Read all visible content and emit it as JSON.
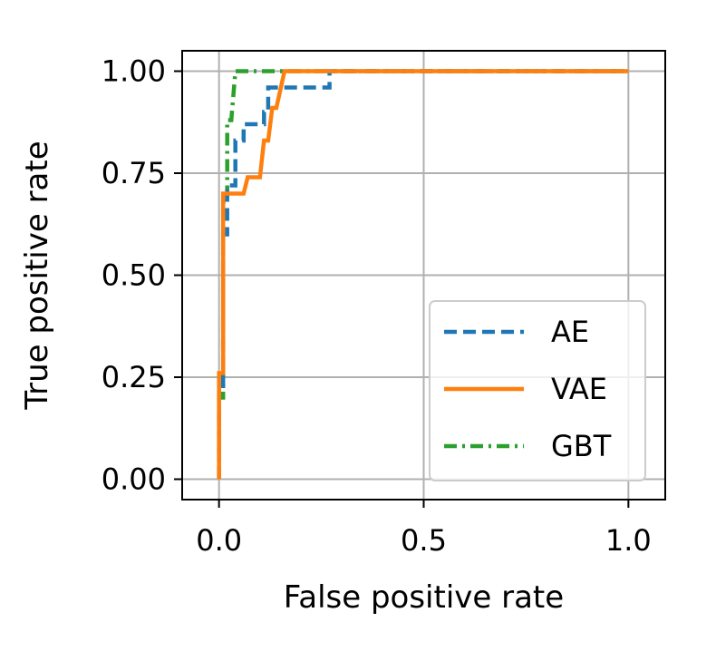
{
  "chart_data": {
    "type": "line",
    "title": "",
    "xlabel": "False positive rate",
    "ylabel": "True positive rate",
    "xlim": [
      -0.09,
      1.09
    ],
    "ylim": [
      -0.05,
      1.05
    ],
    "xticks": [
      0.0,
      0.5,
      1.0
    ],
    "xtick_labels": [
      "0.0",
      "0.5",
      "1.0"
    ],
    "yticks": [
      0.0,
      0.25,
      0.5,
      0.75,
      1.0
    ],
    "ytick_labels": [
      "0.00",
      "0.25",
      "0.50",
      "0.75",
      "1.00"
    ],
    "grid": true,
    "legend_position": "lower-right",
    "series": [
      {
        "name": "AE",
        "color": "#1f77b4",
        "style": "dashed",
        "x": [
          0.0,
          0.0,
          0.01,
          0.01,
          0.02,
          0.02,
          0.04,
          0.04,
          0.06,
          0.06,
          0.11,
          0.11,
          0.12,
          0.12,
          0.16,
          0.16,
          0.27,
          0.27,
          1.0
        ],
        "y": [
          0.0,
          0.22,
          0.22,
          0.6,
          0.6,
          0.72,
          0.72,
          0.83,
          0.83,
          0.87,
          0.87,
          0.9,
          0.9,
          0.96,
          0.96,
          0.96,
          0.96,
          1.0,
          1.0
        ]
      },
      {
        "name": "VAE",
        "color": "#ff7f0e",
        "style": "solid",
        "x": [
          0.0,
          0.0,
          0.01,
          0.01,
          0.06,
          0.07,
          0.1,
          0.11,
          0.12,
          0.13,
          0.14,
          0.16,
          1.0
        ],
        "y": [
          0.0,
          0.26,
          0.26,
          0.7,
          0.7,
          0.74,
          0.74,
          0.83,
          0.83,
          0.91,
          0.91,
          1.0,
          1.0
        ]
      },
      {
        "name": "GBT",
        "color": "#2ca02c",
        "style": "dashdot",
        "x": [
          0.0,
          0.0,
          0.01,
          0.01,
          0.02,
          0.02,
          0.03,
          0.04,
          1.0
        ],
        "y": [
          0.0,
          0.2,
          0.2,
          0.68,
          0.68,
          0.88,
          0.88,
          1.0,
          1.0
        ]
      }
    ]
  }
}
